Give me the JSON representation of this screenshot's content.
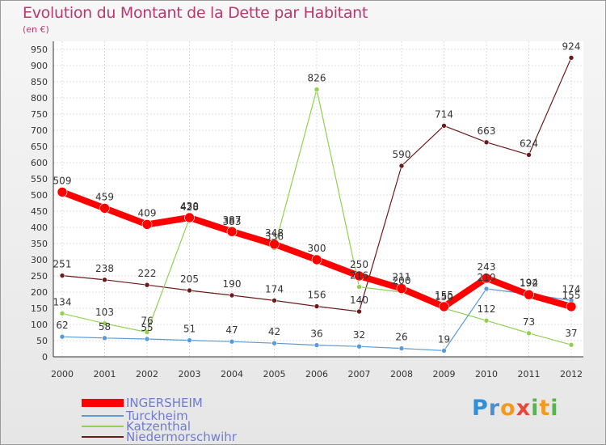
{
  "title": "Evolution du Montant de la Dette par Habitant",
  "unit": "(en €)",
  "brand": {
    "letters": [
      "P",
      "r",
      "o",
      "x",
      "i",
      "t",
      "i"
    ],
    "colors": [
      "#2f8fd8",
      "#4a8fd0",
      "#f39a1d",
      "#e8473a",
      "#52b84a",
      "#f39a1d",
      "#52b84a"
    ]
  },
  "chart_data": {
    "type": "line",
    "title": "Evolution du Montant de la Dette par Habitant",
    "ylabel": "(en €)",
    "xlabel": "",
    "x": [
      "2000",
      "2001",
      "2002",
      "2003",
      "2004",
      "2005",
      "2006",
      "2007",
      "2008",
      "2009",
      "2010",
      "2011",
      "2012"
    ],
    "ylim": [
      0,
      950
    ],
    "yticks": [
      0,
      50,
      100,
      150,
      200,
      250,
      300,
      350,
      400,
      450,
      500,
      550,
      600,
      650,
      700,
      750,
      800,
      850,
      900,
      950
    ],
    "grid": true,
    "legend": "bottom-left",
    "series": [
      {
        "name": "Niedermorschwihr",
        "color": "#6b1a1a",
        "values": [
          251,
          238,
          222,
          205,
          190,
          174,
          156,
          140,
          590,
          714,
          663,
          624,
          924
        ],
        "lineWidth": 1.2,
        "markerR": 3
      },
      {
        "name": "Katzenthal",
        "color": "#92d050",
        "values": [
          134,
          103,
          76,
          428,
          383,
          336,
          826,
          216,
          200,
          150,
          112,
          73,
          37
        ],
        "lineWidth": 1.2,
        "markerR": 3
      },
      {
        "name": "Turckheim",
        "color": "#5b9bd5",
        "values": [
          62,
          58,
          55,
          51,
          47,
          42,
          36,
          32,
          26,
          19,
          210,
          194,
          174
        ],
        "lineWidth": 1.2,
        "markerR": 3
      },
      {
        "name": "INGERSHEIM",
        "color": "#ff0000",
        "values": [
          509,
          459,
          409,
          430,
          387,
          348,
          300,
          250,
          211,
          155,
          243,
          192,
          155
        ],
        "lineWidth": 8,
        "markerR": 6
      }
    ],
    "data_labels": [
      {
        "series": "INGERSHEIM",
        "index": 0,
        "text": "509"
      },
      {
        "series": "INGERSHEIM",
        "index": 1,
        "text": "459"
      },
      {
        "series": "INGERSHEIM",
        "index": 2,
        "text": "409"
      },
      {
        "series": "INGERSHEIM",
        "index": 3,
        "text": "430"
      },
      {
        "series": "INGERSHEIM",
        "index": 4,
        "text": "387"
      },
      {
        "series": "INGERSHEIM",
        "index": 5,
        "text": "348"
      },
      {
        "series": "INGERSHEIM",
        "index": 6,
        "text": "300"
      },
      {
        "series": "INGERSHEIM",
        "index": 7,
        "text": "250"
      },
      {
        "series": "INGERSHEIM",
        "index": 8,
        "text": "211"
      },
      {
        "series": "INGERSHEIM",
        "index": 9,
        "text": "155"
      },
      {
        "series": "INGERSHEIM",
        "index": 10,
        "text": "243"
      },
      {
        "series": "INGERSHEIM",
        "index": 11,
        "text": "192"
      },
      {
        "series": "INGERSHEIM",
        "index": 12,
        "text": "155"
      },
      {
        "series": "Katzenthal",
        "index": 0,
        "text": "134"
      },
      {
        "series": "Katzenthal",
        "index": 1,
        "text": "103"
      },
      {
        "series": "Katzenthal",
        "index": 2,
        "text": "76"
      },
      {
        "series": "Katzenthal",
        "index": 3,
        "text": "428"
      },
      {
        "series": "Katzenthal",
        "index": 4,
        "text": "383"
      },
      {
        "series": "Katzenthal",
        "index": 5,
        "text": "336"
      },
      {
        "series": "Katzenthal",
        "index": 6,
        "text": "826"
      },
      {
        "series": "Katzenthal",
        "index": 7,
        "text": "216"
      },
      {
        "series": "Katzenthal",
        "index": 8,
        "text": "200"
      },
      {
        "series": "Katzenthal",
        "index": 9,
        "text": "150"
      },
      {
        "series": "Katzenthal",
        "index": 10,
        "text": "112"
      },
      {
        "series": "Katzenthal",
        "index": 11,
        "text": "73"
      },
      {
        "series": "Katzenthal",
        "index": 12,
        "text": "37"
      },
      {
        "series": "Turckheim",
        "index": 0,
        "text": "62"
      },
      {
        "series": "Turckheim",
        "index": 1,
        "text": "58"
      },
      {
        "series": "Turckheim",
        "index": 2,
        "text": "55"
      },
      {
        "series": "Turckheim",
        "index": 3,
        "text": "51"
      },
      {
        "series": "Turckheim",
        "index": 4,
        "text": "47"
      },
      {
        "series": "Turckheim",
        "index": 5,
        "text": "42"
      },
      {
        "series": "Turckheim",
        "index": 6,
        "text": "36"
      },
      {
        "series": "Turckheim",
        "index": 7,
        "text": "32"
      },
      {
        "series": "Turckheim",
        "index": 8,
        "text": "26"
      },
      {
        "series": "Turckheim",
        "index": 9,
        "text": "19"
      },
      {
        "series": "Turckheim",
        "index": 10,
        "text": "210"
      },
      {
        "series": "Turckheim",
        "index": 11,
        "text": "194"
      },
      {
        "series": "Turckheim",
        "index": 12,
        "text": "174"
      },
      {
        "series": "Niedermorschwihr",
        "index": 0,
        "text": "251"
      },
      {
        "series": "Niedermorschwihr",
        "index": 1,
        "text": "238"
      },
      {
        "series": "Niedermorschwihr",
        "index": 2,
        "text": "222"
      },
      {
        "series": "Niedermorschwihr",
        "index": 3,
        "text": "205"
      },
      {
        "series": "Niedermorschwihr",
        "index": 4,
        "text": "190"
      },
      {
        "series": "Niedermorschwihr",
        "index": 5,
        "text": "174"
      },
      {
        "series": "Niedermorschwihr",
        "index": 6,
        "text": "156"
      },
      {
        "series": "Niedermorschwihr",
        "index": 7,
        "text": "140"
      },
      {
        "series": "Niedermorschwihr",
        "index": 8,
        "text": "590"
      },
      {
        "series": "Niedermorschwihr",
        "index": 9,
        "text": "714"
      },
      {
        "series": "Niedermorschwihr",
        "index": 10,
        "text": "663"
      },
      {
        "series": "Niedermorschwihr",
        "index": 11,
        "text": "624"
      },
      {
        "series": "Niedermorschwihr",
        "index": 12,
        "text": "924"
      }
    ]
  },
  "legend": {
    "items": [
      {
        "name": "INGERSHEIM",
        "color": "#ff0000",
        "thick": true
      },
      {
        "name": "Turckheim",
        "color": "#5b9bd5",
        "thick": false
      },
      {
        "name": "Katzenthal",
        "color": "#92d050",
        "thick": false
      },
      {
        "name": "Niedermorschwihr",
        "color": "#6b1a1a",
        "thick": false
      }
    ]
  }
}
